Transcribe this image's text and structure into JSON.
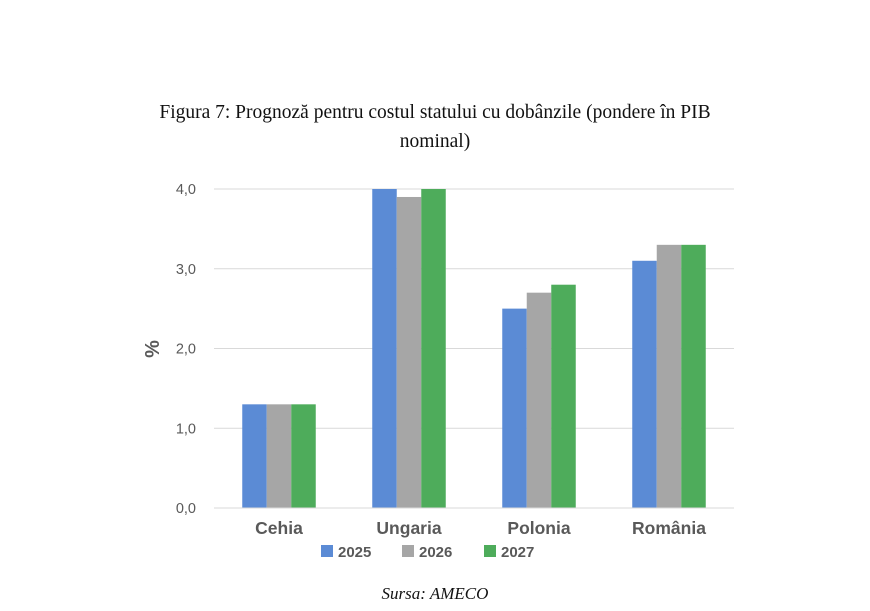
{
  "figure": {
    "title_line1": "Figura 7: Prognoză pentru costul statului cu dobânzile (pondere în PIB",
    "title_line2": "nominal)",
    "source": "Sursa: AMECO"
  },
  "chart_data": {
    "type": "bar",
    "title": "Figura 7: Prognoză pentru costul statului cu dobânzile (pondere în PIB nominal)",
    "xlabel": "",
    "ylabel": "%",
    "categories": [
      "Cehia",
      "Ungaria",
      "Polonia",
      "România"
    ],
    "series": [
      {
        "name": "2025",
        "color": "#5b8bd5",
        "values": [
          1.3,
          4.0,
          2.5,
          3.1
        ]
      },
      {
        "name": "2026",
        "color": "#a6a6a6",
        "values": [
          1.3,
          3.9,
          2.7,
          3.3
        ]
      },
      {
        "name": "2027",
        "color": "#4eac5b",
        "values": [
          1.3,
          4.0,
          2.8,
          3.3
        ]
      }
    ],
    "ylim": [
      0,
      4
    ],
    "yticks": [
      0,
      1,
      2,
      3,
      4
    ],
    "ytick_labels": [
      "0,0",
      "1,0",
      "2,0",
      "3,0",
      "4,0"
    ],
    "grid": true,
    "legend_position": "bottom-center"
  }
}
